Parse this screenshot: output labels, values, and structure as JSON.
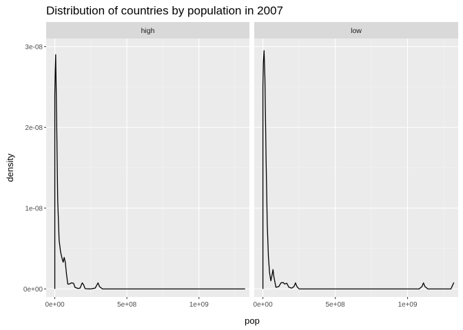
{
  "chart_data": {
    "type": "line",
    "title": "Distribution of countries by population in 2007",
    "xlabel": "pop",
    "ylabel": "density",
    "xlim": [
      -60000000.0,
      1350000000.0
    ],
    "ylim": [
      -1e-09,
      3.1e-08
    ],
    "x_ticks": [
      {
        "value": 0,
        "label": "0e+00"
      },
      {
        "value": 500000000,
        "label": "5e+08"
      },
      {
        "value": 1000000000,
        "label": "1e+09"
      }
    ],
    "y_ticks": [
      {
        "value": 0,
        "label": "0e+00"
      },
      {
        "value": 1e-08,
        "label": "1e-08"
      },
      {
        "value": 2e-08,
        "label": "2e-08"
      },
      {
        "value": 3e-08,
        "label": "3e-08"
      }
    ],
    "grid": true,
    "facets": [
      {
        "label": "high",
        "points": [
          [
            0,
            0
          ],
          [
            0,
            2.4e-08
          ],
          [
            3000000.0,
            2.7e-08
          ],
          [
            6000000.0,
            2.9e-08
          ],
          [
            12000000.0,
            2.2e-08
          ],
          [
            20000000.0,
            1.1e-08
          ],
          [
            30000000.0,
            6e-09
          ],
          [
            40000000.0,
            4.6e-09
          ],
          [
            50000000.0,
            3.8e-09
          ],
          [
            58000000.0,
            3.3e-09
          ],
          [
            65000000.0,
            3.9e-09
          ],
          [
            73000000.0,
            3.3e-09
          ],
          [
            80000000.0,
            2e-09
          ],
          [
            90000000.0,
            6e-10
          ],
          [
            100000000.0,
            6e-10
          ],
          [
            115000000.0,
            7.5e-10
          ],
          [
            130000000.0,
            7e-10
          ],
          [
            140000000.0,
            2e-10
          ],
          [
            160000000.0,
            5e-11
          ],
          [
            175000000.0,
            1e-10
          ],
          [
            190000000.0,
            7.5e-10
          ],
          [
            200000000.0,
            5e-10
          ],
          [
            210000000.0,
            3e-11
          ],
          [
            250000000.0,
            0
          ],
          [
            280000000.0,
            1e-10
          ],
          [
            300000000.0,
            7.5e-10
          ],
          [
            310000000.0,
            3e-10
          ],
          [
            330000000.0,
            0
          ],
          [
            600000000.0,
            0
          ],
          [
            1000000000.0,
            0
          ],
          [
            1320000000.0,
            0
          ]
        ]
      },
      {
        "label": "low",
        "points": [
          [
            0,
            0
          ],
          [
            0,
            2.5e-08
          ],
          [
            3000000.0,
            2.8e-08
          ],
          [
            8000000.0,
            2.95e-08
          ],
          [
            14000000.0,
            2.6e-08
          ],
          [
            22000000.0,
            1.6e-08
          ],
          [
            30000000.0,
            8e-09
          ],
          [
            38000000.0,
            4e-09
          ],
          [
            46000000.0,
            2e-09
          ],
          [
            55000000.0,
            1e-09
          ],
          [
            65000000.0,
            1.9e-09
          ],
          [
            70000000.0,
            2.4e-09
          ],
          [
            75000000.0,
            1.6e-09
          ],
          [
            90000000.0,
            2e-10
          ],
          [
            110000000.0,
            3e-10
          ],
          [
            125000000.0,
            7.5e-10
          ],
          [
            140000000.0,
            8e-10
          ],
          [
            150000000.0,
            6e-10
          ],
          [
            165000000.0,
            7e-10
          ],
          [
            180000000.0,
            2e-10
          ],
          [
            200000000.0,
            1e-10
          ],
          [
            215000000.0,
            3e-10
          ],
          [
            225000000.0,
            7.5e-10
          ],
          [
            235000000.0,
            3e-10
          ],
          [
            250000000.0,
            0
          ],
          [
            1080000000.0,
            0
          ],
          [
            1100000000.0,
            3e-10
          ],
          [
            1110000000.0,
            7.5e-10
          ],
          [
            1120000000.0,
            3e-10
          ],
          [
            1140000000.0,
            0
          ],
          [
            1300000000.0,
            0
          ],
          [
            1310000000.0,
            4e-10
          ],
          [
            1320000000.0,
            8e-10
          ]
        ]
      }
    ]
  }
}
